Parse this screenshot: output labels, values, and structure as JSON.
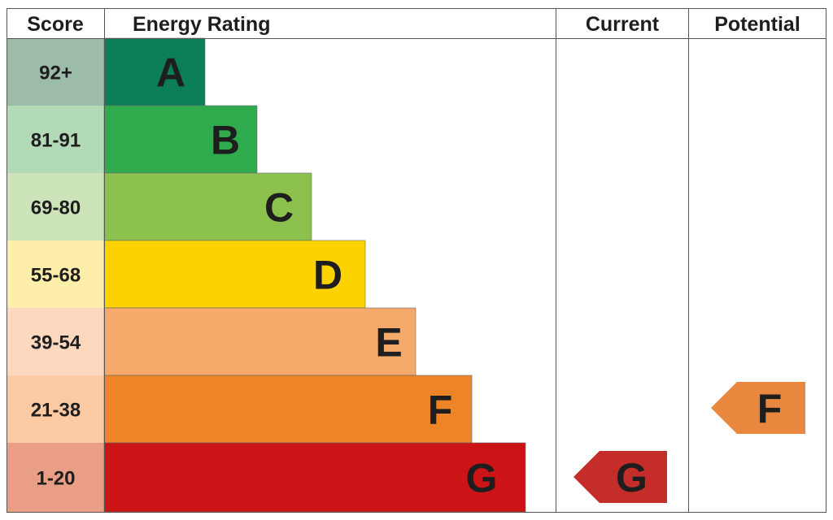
{
  "headers": {
    "score": "Score",
    "rating": "Energy Rating",
    "current": "Current",
    "potential": "Potential"
  },
  "chart_data": {
    "type": "bar",
    "categories": [
      "A",
      "B",
      "C",
      "D",
      "E",
      "F",
      "G"
    ],
    "score_ranges": [
      "92+",
      "81-91",
      "69-80",
      "55-68",
      "39-54",
      "21-38",
      "1-20"
    ],
    "band_colors": [
      "#0c7e55",
      "#2fab4e",
      "#8dc14d",
      "#fcd300",
      "#f5a96b",
      "#ee8428",
      "#cc1417"
    ],
    "score_colors": [
      "#9dbba9",
      "#b2dab7",
      "#cde3b9",
      "#fdeeaa",
      "#fcd8bf",
      "#fbcaa3",
      "#eb9e86"
    ],
    "current": {
      "rating": "G",
      "color": "#c42d2a"
    },
    "potential": {
      "rating": "F",
      "color": "#e9873f"
    }
  }
}
